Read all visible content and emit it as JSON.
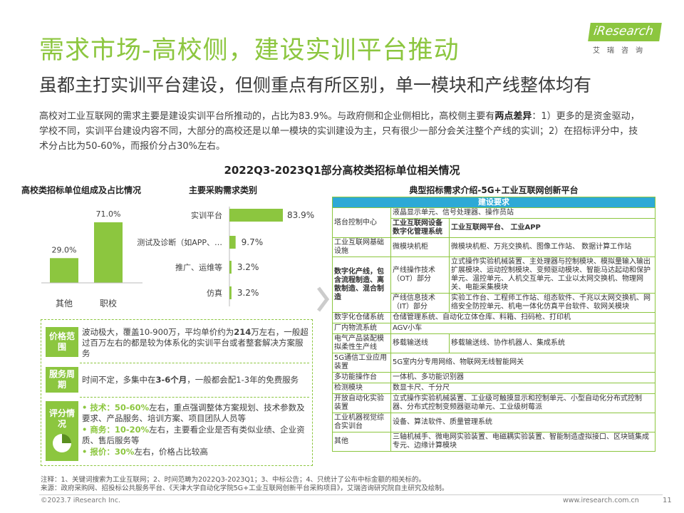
{
  "header": {
    "title": "需求市场-高校侧，建设实训平台推动",
    "subtitle": "虽都主打实训平台建设，但侧重点有所区别，单一模块和产线整体均有"
  },
  "logo": {
    "brand": "iResearch",
    "cn": "艾瑞咨询"
  },
  "intro": {
    "p1": "高校对工业互联网的需求主要是建设实训平台所推动的，占比为83.9%。与政府侧和企业侧相比，高校侧主要有",
    "bold": "两点差异",
    "p2": "：1）更多的是资金驱动，学校不同，实训平台建设内容不同，大部分的高校还是以单一模块的实训建设为主，只有很少一部分会关注整个产线的实训；2）在招标评分中，技术分占比为50-60%，而报价分占30%左右。"
  },
  "section_title": "2022Q3-2023Q1部分高校类招标单位相关情况",
  "chart_data": [
    {
      "type": "bar",
      "title": "高校类招标单位组成及占比情况",
      "categories": [
        "其他",
        "职校"
      ],
      "values": [
        29.0,
        71.0
      ],
      "value_labels": [
        "29.0%",
        "71.0%"
      ],
      "colors": [
        "#8cc63f"
      ]
    },
    {
      "type": "bar",
      "orientation": "horizontal",
      "title": "主要采购需求类别",
      "categories": [
        "实训平台",
        "测试及诊断（如APP、…",
        "推广、运维等",
        "仿真"
      ],
      "values": [
        83.9,
        9.7,
        3.2,
        3.2
      ],
      "value_labels": [
        "83.9%",
        "9.7%",
        "3.2%",
        "3.2%"
      ],
      "colors": [
        "#8cc63f"
      ]
    }
  ],
  "price": {
    "tag1": "价格范围",
    "text1_a": "波动极大，覆盖10-900万，平均单价约为",
    "text1_b": "214",
    "text1_c": "万左右，一般超过百万左右的都是较为体系化的实训平台或者整套解决方案服务",
    "tag2": "服务周期",
    "text2_a": "时间不定，多集中在",
    "text2_b": "3-6个月",
    "text2_c": "，一般都会配1-3年的免费服务",
    "tag3": "评分情况",
    "items": [
      {
        "label": "技术：50-60%",
        "rest": "左右，重点强调整体方案规划、技术参数及要求、产品服务、培训方案、项目团队人员等"
      },
      {
        "label": "商务：10-20%",
        "rest": "左右，主要看企业是否有类似业绩、企业资质、售后服务等"
      },
      {
        "label": "报价：30%",
        "rest": "左右，价格占比较高"
      }
    ]
  },
  "table": {
    "title": "典型招标需求介绍-5G+工业互联网创新平台",
    "header": "建设要求",
    "r1": {
      "c1": "塔台控制中心",
      "a": "液晶显示单元、信号处理器、操作员站",
      "b1": "工业互联网设备数字化管理系统",
      "b2": "工业互联网平台、 工业APP"
    },
    "r2": {
      "c1": "工业互联网基础设施",
      "c2": "微模块机柜",
      "c3": "微模块机柜、万兆交换机、图像工作站、 数据计算工作站"
    },
    "r3": {
      "c1": "数字化产线，包含流程制造、离散制造、混合制造",
      "a1": "产线操作技术（OT）部分",
      "a2": "立式操作实验机械装置、主处理器与控制模块、模拟量输入输出扩展模块、运动控制模块、变频驱动模块、智能马达起动和保护单元、温控单元、人机交互单元、工业以太网交换机、物理网关、电能采集模块",
      "b1": "产线信息技术（IT）部分",
      "b2": "实验工作台、工程师工作站、组态软件、千兆以太网交换机、网络安全防控单元、机电一体化仿真平台软件、软网关模块"
    },
    "r4": {
      "c1": "数字化仓储系统",
      "c2": "仓储管理系统、自动化立体仓库、料箱、扫码枪、打印机"
    },
    "r5": {
      "c1": "厂内物流系统",
      "c2": "AGV小车"
    },
    "r6": {
      "c1": "电气产品装配模拟柔性生产线",
      "c2": "移载输送线",
      "c3": "移载输送线、协作机器人、集成系统"
    },
    "r7": {
      "c1": "5G通信工业应用装置",
      "c2": "5G室内分专用网络、物联网无线智能网关"
    },
    "r8": {
      "c1": "多功能操作台",
      "c2": "一体机、多功能识别器"
    },
    "r9": {
      "c1": "检测模块",
      "c2": "数显卡尺、千分尺"
    },
    "r10": {
      "c1": "开放自动化实验装置",
      "c2": "立式操作实验机械装置、工业级可触摸显示和控制单元、小型自动化分布式控制器、分布式控制变频器驱动单元、工业级树莓派"
    },
    "r11": {
      "c1": "工业机器视觉综合实训台",
      "c2": "设备、算法软件、质量管理系统"
    },
    "r12": {
      "c1": "其他",
      "c2": "三轴机械手、微电网实验装置、电磁耦实验装置、智能制造虚拟接口、区块链集成专元、边缘计算模块"
    }
  },
  "footer": {
    "note": "注释：1、关键词搜索为工业互联网；2、时间范畴为2022Q3-2023Q1；3、中标公告；4、只统计了公布中标金额的相关标的。",
    "source": "来源：政府采购网、招投标公共服务平台、《天津大学自动化学院5G+工业互联网创新平台采购项目》，艾瑞咨询研究院自主研究及绘制。",
    "copyright": "©2023.7 iResearch Inc.",
    "site": "www.iresearch.com.cn",
    "page": "11"
  }
}
